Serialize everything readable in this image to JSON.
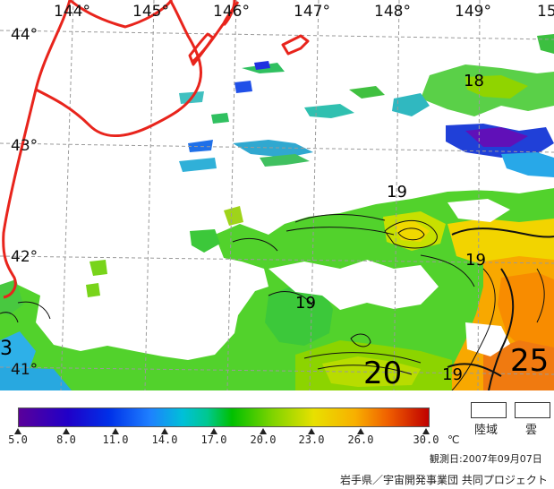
{
  "map": {
    "lon_labels": [
      "144°",
      "145°",
      "146°",
      "147°",
      "148°",
      "149°",
      "15"
    ],
    "lat_labels": [
      "44°",
      "43°",
      "42°",
      "41°"
    ],
    "edge_label_left": "3",
    "contour_labels": {
      "c18": "18",
      "c19a": "19",
      "c19b": "19",
      "c19c": "19",
      "c19d": "19",
      "c20": "20",
      "c25": "25"
    },
    "colors": {
      "coastline": "#e8241c",
      "grid": "#9a9a9a",
      "land": "#ffffff"
    }
  },
  "legend": {
    "tick_labels": [
      "5.0",
      "8.0",
      "11.0",
      "14.0",
      "17.0",
      "20.0",
      "23.0",
      "26.0",
      "30.0"
    ],
    "unit": "℃",
    "land_label": "陸域",
    "cloud_label": "雲",
    "obs_date": "観測日:2007年09月07日",
    "credit": "岩手県／宇宙開発事業団 共同プロジェクト",
    "colors": [
      "#5a009a",
      "#0000d0",
      "#1e6cff",
      "#00c0d8",
      "#00c000",
      "#90d800",
      "#f0e000",
      "#f08000",
      "#c00000"
    ]
  }
}
